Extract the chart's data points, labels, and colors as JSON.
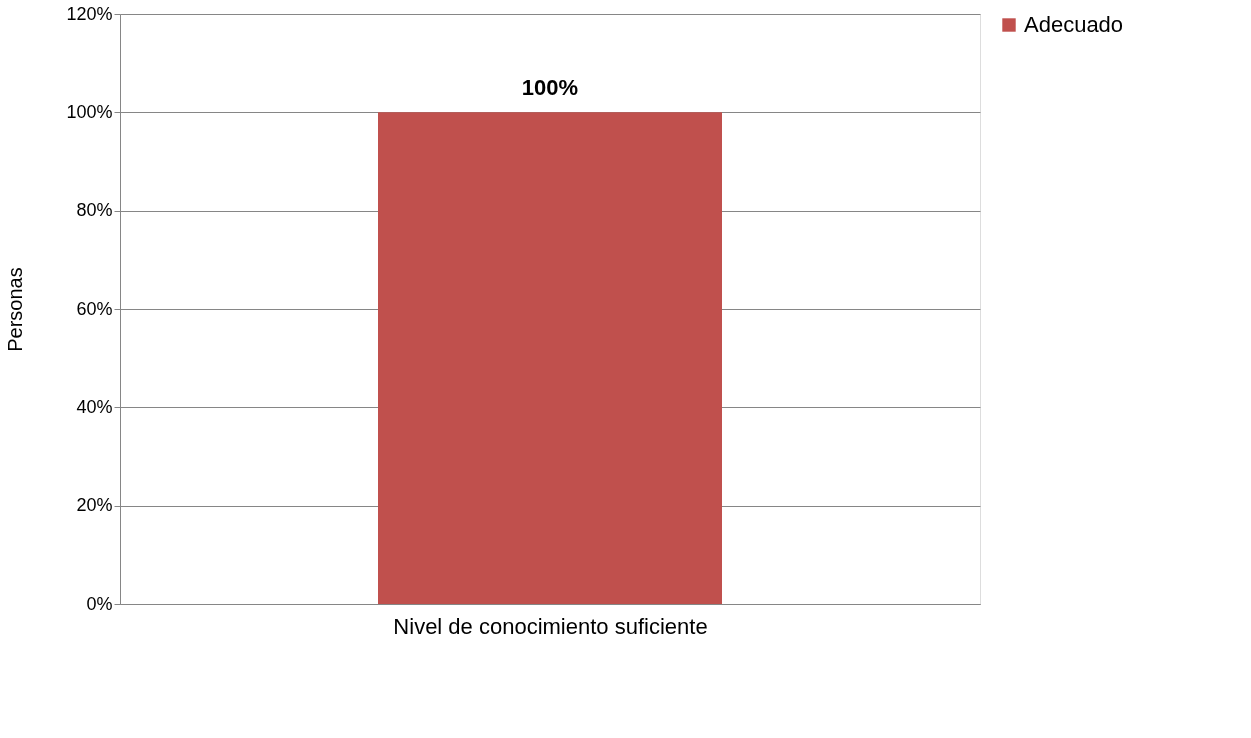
{
  "chart_data": {
    "type": "bar",
    "categories": [
      "Nivel de conocimiento suficiente"
    ],
    "series": [
      {
        "name": "Adecuado",
        "color": "#c0504d",
        "values": [
          100
        ],
        "value_labels": [
          "100%"
        ]
      }
    ],
    "ylabel": "Personas",
    "ylim": [
      0,
      120
    ],
    "yticks": [
      {
        "value": 0,
        "label": "0%"
      },
      {
        "value": 20,
        "label": "20%"
      },
      {
        "value": 40,
        "label": "40%"
      },
      {
        "value": 60,
        "label": "60%"
      },
      {
        "value": 80,
        "label": "80%"
      },
      {
        "value": 100,
        "label": "100%"
      },
      {
        "value": 120,
        "label": "120%"
      }
    ],
    "grid": "y",
    "legend": "right"
  }
}
